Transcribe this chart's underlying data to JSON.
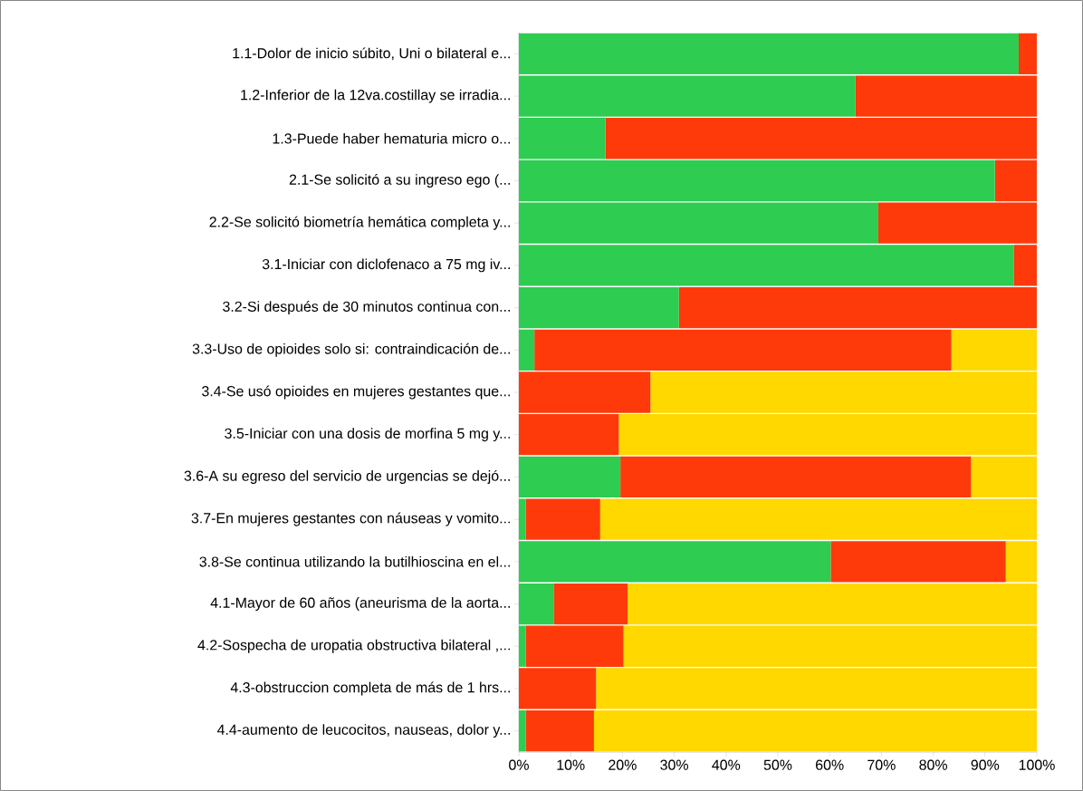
{
  "chart_data": {
    "type": "bar",
    "orientation": "horizontal",
    "stacked": true,
    "categories": [
      "1.1-Dolor de inicio súbito, Uni o bilateral e...",
      "1.2-Inferior de la 12va.costillay se irradia...",
      "1.3-Puede haber hematuria micro o...",
      "2.1-Se solicitó a su ingreso ego (...",
      "2.2-Se solicitó biometría hemática completa y...",
      "3.1-Iniciar con diclofenaco a 75 mg iv...",
      "3.2-Si después de 30 minutos continua con...",
      "3.3-Uso de opioides solo si: contraindicación de...",
      "3.4-Se usó opioides en mujeres gestantes que...",
      "3.5-Iniciar con una dosis de morfina 5 mg y...",
      "3.6-A su egreso del servicio de urgencias se dejó...",
      "3.7-En mujeres gestantes con náuseas y vomito...",
      "3.8-Se continua utilizando la butilhioscina en el...",
      "4.1-Mayor de 60 años (aneurisma de la aorta...",
      "4.2-Sospecha de uropatia obstructiva bilateral ,...",
      "4.3-obstruccion completa de más de 1 hrs...",
      "4.4-aumento de leucocitos, nauseas, dolor y..."
    ],
    "series": [
      {
        "color": "#2ecc50",
        "values": [
          96.5,
          65,
          16.7,
          91.9,
          69.4,
          95.6,
          30.9,
          3,
          0,
          0,
          19.6,
          1.3,
          60.2,
          6.8,
          1.3,
          0,
          1.3
        ]
      },
      {
        "color": "#ff3a0a",
        "values": [
          3.5,
          35,
          83.3,
          8.1,
          30.6,
          4.4,
          69.1,
          80.5,
          25.4,
          19.3,
          67.7,
          14.4,
          33.8,
          14.2,
          18.9,
          14.9,
          13.2
        ]
      },
      {
        "color": "#ffd800",
        "values": [
          0,
          0,
          0,
          0,
          0,
          0,
          0,
          16.5,
          74.6,
          80.7,
          12.7,
          84.3,
          6,
          79,
          79.8,
          85.1,
          85.5
        ]
      }
    ],
    "xlim": [
      0,
      100
    ],
    "xticks": [
      {
        "value": 0,
        "label": "0%"
      },
      {
        "value": 10,
        "label": "10%"
      },
      {
        "value": 20,
        "label": "20%"
      },
      {
        "value": 30,
        "label": "30%"
      },
      {
        "value": 40,
        "label": "40%"
      },
      {
        "value": 50,
        "label": "50%"
      },
      {
        "value": 60,
        "label": "60%"
      },
      {
        "value": 70,
        "label": "70%"
      },
      {
        "value": 80,
        "label": "80%"
      },
      {
        "value": 90,
        "label": "90%"
      },
      {
        "value": 100,
        "label": "100%"
      }
    ]
  }
}
